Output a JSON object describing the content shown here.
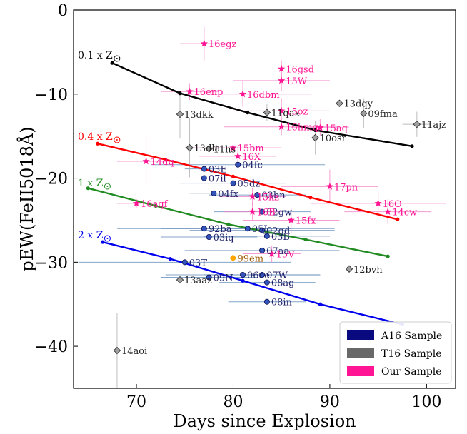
{
  "chart_data": {
    "type": "scatter",
    "title": "",
    "xlabel": "Days since Explosion",
    "ylabel": "pEW(FeII5018Å)",
    "xlim": [
      63.5,
      103
    ],
    "ylim": [
      -45,
      0
    ],
    "xticks": [
      "70",
      "80",
      "90",
      "100"
    ],
    "yticks": [
      "0",
      "−10",
      "−20",
      "−30",
      "−40"
    ],
    "grid": false,
    "legend_position": "bottom-right",
    "legend": [
      {
        "name": "A16 Sample",
        "color": "#0a0a80"
      },
      {
        "name": "T16 Sample",
        "color": "#686868"
      },
      {
        "name": "Our Sample",
        "color": "#ff1493"
      }
    ],
    "models": [
      {
        "label": "0.1 x Z",
        "color": "#000000",
        "points": [
          [
            67.5,
            -6.3
          ],
          [
            74.5,
            -9.9
          ],
          [
            81.5,
            -12.2
          ],
          [
            88.5,
            -14.3
          ],
          [
            98.5,
            -16.2
          ]
        ]
      },
      {
        "label": "0.4 x Z",
        "color": "#ff0000",
        "points": [
          [
            66.0,
            -15.9
          ],
          [
            73.0,
            -17.8
          ],
          [
            80.0,
            -19.8
          ],
          [
            88.0,
            -22.3
          ],
          [
            97.0,
            -24.9
          ]
        ]
      },
      {
        "label": "1 x Z",
        "color": "#228b22",
        "points": [
          [
            65.0,
            -21.2
          ],
          [
            72.0,
            -23.3
          ],
          [
            79.5,
            -25.5
          ],
          [
            87.5,
            -27.3
          ],
          [
            96.0,
            -29.3
          ]
        ]
      },
      {
        "label": "2 x Z",
        "color": "#0000ee",
        "points": [
          [
            66.5,
            -27.6
          ],
          [
            73.5,
            -29.6
          ],
          [
            81.0,
            -32.2
          ],
          [
            89.0,
            -35.0
          ],
          [
            97.5,
            -37.4
          ]
        ]
      }
    ],
    "a16_points": [
      {
        "label": "03E",
        "x": 77.0,
        "y": -18.9,
        "xerr": 2.0,
        "yerr": 0
      },
      {
        "label": "07il",
        "x": 77.0,
        "y": -20.0,
        "xerr": 2.5,
        "yerr": 0
      },
      {
        "label": "04fc",
        "x": 80.5,
        "y": -18.4,
        "xerr": 9.0,
        "yerr": 0
      },
      {
        "label": "05dz",
        "x": 80.0,
        "y": -20.6,
        "xerr": 5.5,
        "yerr": 0
      },
      {
        "label": "04fx",
        "x": 78.0,
        "y": -21.8,
        "xerr": 2.5,
        "yerr": 0
      },
      {
        "label": "03bn",
        "x": 82.5,
        "y": -22.0,
        "xerr": 5.0,
        "yerr": 0
      },
      {
        "label": "02gw",
        "x": 83.0,
        "y": -24.0,
        "xerr": 5.0,
        "yerr": 0
      },
      {
        "label": "92ba",
        "x": 77.0,
        "y": -26.0,
        "xerr": 9.0,
        "yerr": 0
      },
      {
        "label": "03iq",
        "x": 77.5,
        "y": -27.0,
        "xerr": 5.0,
        "yerr": 0
      },
      {
        "label": "05J",
        "x": 81.5,
        "y": -26.0,
        "xerr": 9.0,
        "yerr": 0
      },
      {
        "label": "02gd",
        "x": 83.0,
        "y": -26.2,
        "xerr": 7.5,
        "yerr": 0
      },
      {
        "label": "03B",
        "x": 83.5,
        "y": -26.9,
        "xerr": 6.5,
        "yerr": 0
      },
      {
        "label": "07aa",
        "x": 83.0,
        "y": -28.6,
        "xerr": 8.0,
        "yerr": 0
      },
      {
        "label": "03T",
        "x": 75.0,
        "y": -30.0,
        "xerr": 11.0,
        "yerr": 0
      },
      {
        "label": "09N",
        "x": 77.5,
        "y": -31.8,
        "xerr": 5.0,
        "yerr": 0
      },
      {
        "label": "06ee",
        "x": 81.0,
        "y": -31.5,
        "xerr": 8.0,
        "yerr": 0
      },
      {
        "label": "07W",
        "x": 83.0,
        "y": -31.5,
        "xerr": 6.0,
        "yerr": 0
      },
      {
        "label": "08ag",
        "x": 83.5,
        "y": -32.4,
        "xerr": 5.0,
        "yerr": 0
      },
      {
        "label": "08in",
        "x": 83.5,
        "y": -34.7,
        "xerr": 4.0,
        "yerr": 0
      }
    ],
    "t16_points": [
      {
        "label": "13dkk",
        "x": 74.5,
        "y": -12.4,
        "xerr": 0,
        "yerr": 2.8
      },
      {
        "label": "13dla",
        "x": 75.5,
        "y": -16.4,
        "xerr": 0,
        "yerr": 3.5
      },
      {
        "label": "11hs",
        "x": 77.5,
        "y": -16.5,
        "xerr": 0,
        "yerr": 0
      },
      {
        "label": "11qax",
        "x": 83.5,
        "y": -12.2,
        "xerr": 0,
        "yerr": 1.0
      },
      {
        "label": "10osr",
        "x": 88.5,
        "y": -15.2,
        "xerr": 0,
        "yerr": 2.0
      },
      {
        "label": "13dqy",
        "x": 91.0,
        "y": -11.1,
        "xerr": 0,
        "yerr": 0
      },
      {
        "label": "09fma",
        "x": 93.5,
        "y": -12.3,
        "xerr": 0,
        "yerr": 1.8
      },
      {
        "label": "11ajz",
        "x": 99.0,
        "y": -13.6,
        "xerr": 1.5,
        "yerr": 1.5
      },
      {
        "label": "13aaz",
        "x": 74.5,
        "y": -32.1,
        "xerr": 0,
        "yerr": 0
      },
      {
        "label": "12bvh",
        "x": 92.0,
        "y": -30.8,
        "xerr": 0,
        "yerr": 0
      },
      {
        "label": "14aoi",
        "x": 68.0,
        "y": -40.5,
        "xerr": 0,
        "yerr": 4.5
      }
    ],
    "our_points": [
      {
        "label": "16egz",
        "x": 77.0,
        "y": -4.0,
        "xerr": 2.5,
        "yerr": 2.0
      },
      {
        "label": "16gsd",
        "x": 85.0,
        "y": -7.0,
        "xerr": 5.0,
        "yerr": 1.0
      },
      {
        "label": "15W",
        "x": 85.0,
        "y": -8.4,
        "xerr": 5.0,
        "yerr": 1.2
      },
      {
        "label": "16enp",
        "x": 75.5,
        "y": -9.7,
        "xerr": 3.0,
        "yerr": 1.0
      },
      {
        "label": "16dbm",
        "x": 81.0,
        "y": -10.0,
        "xerr": 7.0,
        "yerr": 1.5
      },
      {
        "label": "15oz",
        "x": 85.0,
        "y": -12.0,
        "xerr": 5.0,
        "yerr": 1.5
      },
      {
        "label": "16hmq",
        "x": 85.0,
        "y": -13.9,
        "xerr": 6.0,
        "yerr": 1.0
      },
      {
        "label": "15aq",
        "x": 89.0,
        "y": -14.0,
        "xerr": 3.0,
        "yerr": 1.0
      },
      {
        "label": "15bm",
        "x": 80.0,
        "y": -16.4,
        "xerr": 5.0,
        "yerr": 1.2
      },
      {
        "label": "16X",
        "x": 80.5,
        "y": -17.4,
        "xerr": 4.0,
        "yerr": 1.2
      },
      {
        "label": "14dq",
        "x": 71.0,
        "y": -18.0,
        "xerr": 3.0,
        "yerr": 3.0
      },
      {
        "label": "17pn",
        "x": 90.0,
        "y": -21.0,
        "xerr": 5.0,
        "yerr": 2.0
      },
      {
        "label": "15kz",
        "x": 82.0,
        "y": -22.2,
        "xerr": 3.5,
        "yerr": 1.0
      },
      {
        "label": "16B",
        "x": 82.0,
        "y": -24.0,
        "xerr": 3.0,
        "yerr": 1.0
      },
      {
        "label": "15fx",
        "x": 86.0,
        "y": -25.0,
        "xerr": 5.0,
        "yerr": 1.5
      },
      {
        "label": "16O",
        "x": 95.0,
        "y": -23.0,
        "xerr": 7.0,
        "yerr": 1.5
      },
      {
        "label": "14cw",
        "x": 96.0,
        "y": -24.0,
        "xerr": 4.5,
        "yerr": 1.5
      },
      {
        "label": "16aqf",
        "x": 70.0,
        "y": -23.0,
        "xerr": 2.0,
        "yerr": 0.5
      },
      {
        "label": "15V",
        "x": 84.0,
        "y": -29.0,
        "xerr": 3.0,
        "yerr": 1.0
      }
    ],
    "special_points": [
      {
        "label": "99em",
        "x": 80.0,
        "y": -29.5,
        "xerr": 1.5,
        "yerr": 0.8,
        "color": "#ffa500"
      }
    ]
  }
}
